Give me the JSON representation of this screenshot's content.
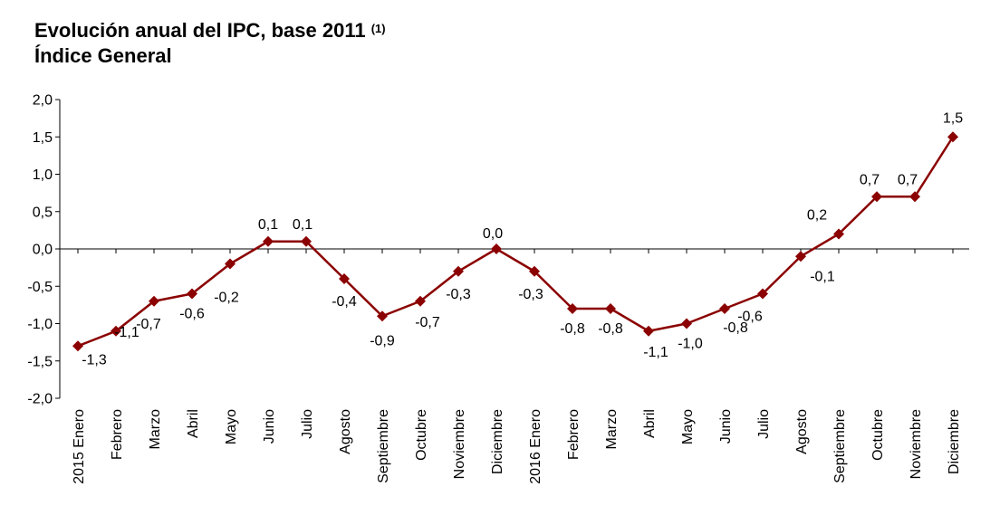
{
  "chart_data": {
    "type": "line",
    "title": "Evolución anual del IPC, base 2011",
    "title_note": "(1)",
    "subtitle": "Índice General",
    "categories": [
      "2015 Enero",
      "Febrero",
      "Marzo",
      "Abril",
      "Mayo",
      "Junio",
      "Julio",
      "Agosto",
      "Septiembre",
      "Octubre",
      "Noviembre",
      "Diciembre",
      "2016 Enero",
      "Febrero",
      "Marzo",
      "Abril",
      "Mayo",
      "Junio",
      "Julio",
      "Agosto",
      "Septiembre",
      "Octubre",
      "Noviembre",
      "Diciembre"
    ],
    "values": [
      -1.3,
      -1.1,
      -0.7,
      -0.6,
      -0.2,
      0.1,
      0.1,
      -0.4,
      -0.9,
      -0.7,
      -0.3,
      0.0,
      -0.3,
      -0.8,
      -0.8,
      -1.1,
      -1.0,
      -0.8,
      -0.6,
      -0.1,
      0.2,
      0.7,
      0.7,
      1.5
    ],
    "data_labels": [
      "-1,3",
      "-1,1",
      "-0,7",
      "-0,6",
      "-0,2",
      "0,1",
      "0,1",
      "-0,4",
      "-0,9",
      "-0,7",
      "-0,3",
      "0,0",
      "-0,3",
      "-0,8",
      "-0,8",
      "-1,1",
      "-1,0",
      "-0,8",
      "-0,6",
      "-0,1",
      "0,2",
      "0,7",
      "0,7",
      "1,5"
    ],
    "y_ticks": [
      "2,0",
      "1,5",
      "1,0",
      "0,5",
      "0,0",
      "-0,5",
      "-1,0",
      "-1,5",
      "-2,0"
    ],
    "ylim": [
      -2.0,
      2.0
    ],
    "xlabel": "",
    "ylabel": "",
    "grid": false,
    "series_color": "#8b0000"
  }
}
